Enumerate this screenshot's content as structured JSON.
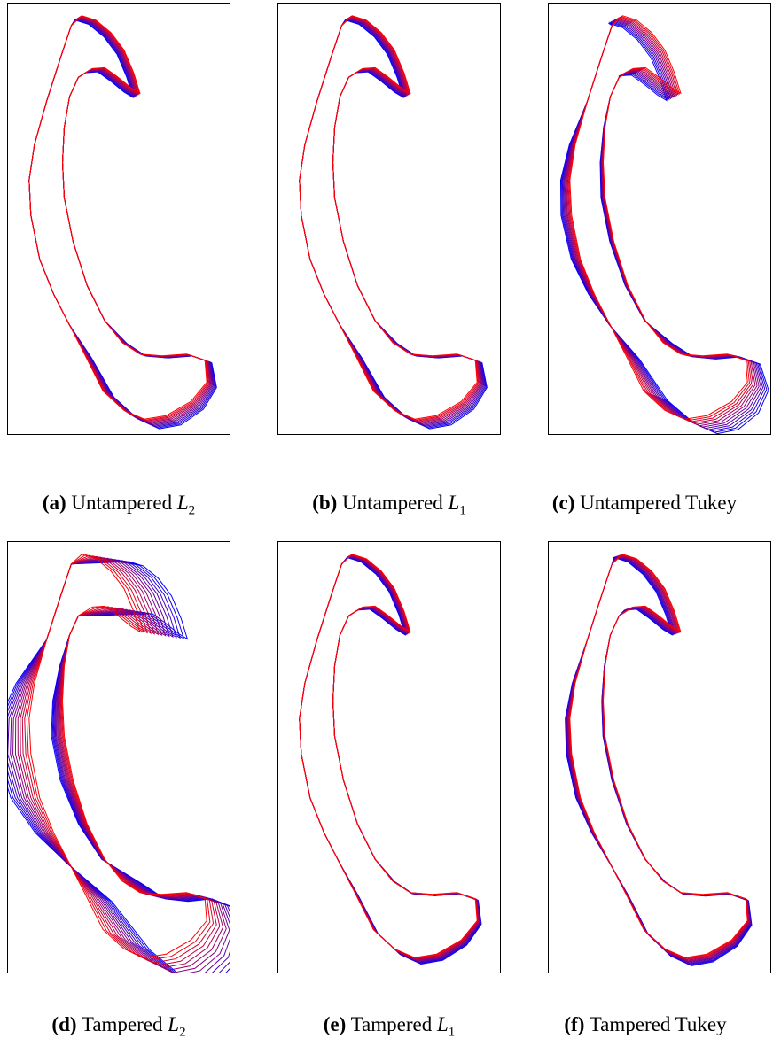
{
  "colors": {
    "start": "#0000ff",
    "end": "#ff0000",
    "frame": "#000000"
  },
  "panels": [
    {
      "tag": "(a)",
      "label": "Untampered",
      "symbol": "L",
      "sub": "2",
      "text": "",
      "variant": "untampered"
    },
    {
      "tag": "(b)",
      "label": "Untampered",
      "symbol": "L",
      "sub": "1",
      "text": "",
      "variant": "untampered"
    },
    {
      "tag": "(c)",
      "label": "Untampered",
      "symbol": "",
      "sub": "",
      "text": "Tukey",
      "variant": "untampered-tukey"
    },
    {
      "tag": "(d)",
      "label": "Tampered",
      "symbol": "L",
      "sub": "2",
      "text": "",
      "variant": "tampered-l2"
    },
    {
      "tag": "(e)",
      "label": "Tampered",
      "symbol": "L",
      "sub": "1",
      "text": "",
      "variant": "tampered"
    },
    {
      "tag": "(f)",
      "label": "Tampered",
      "symbol": "",
      "sub": "",
      "text": "Tukey",
      "variant": "tampered-tukey"
    }
  ]
}
